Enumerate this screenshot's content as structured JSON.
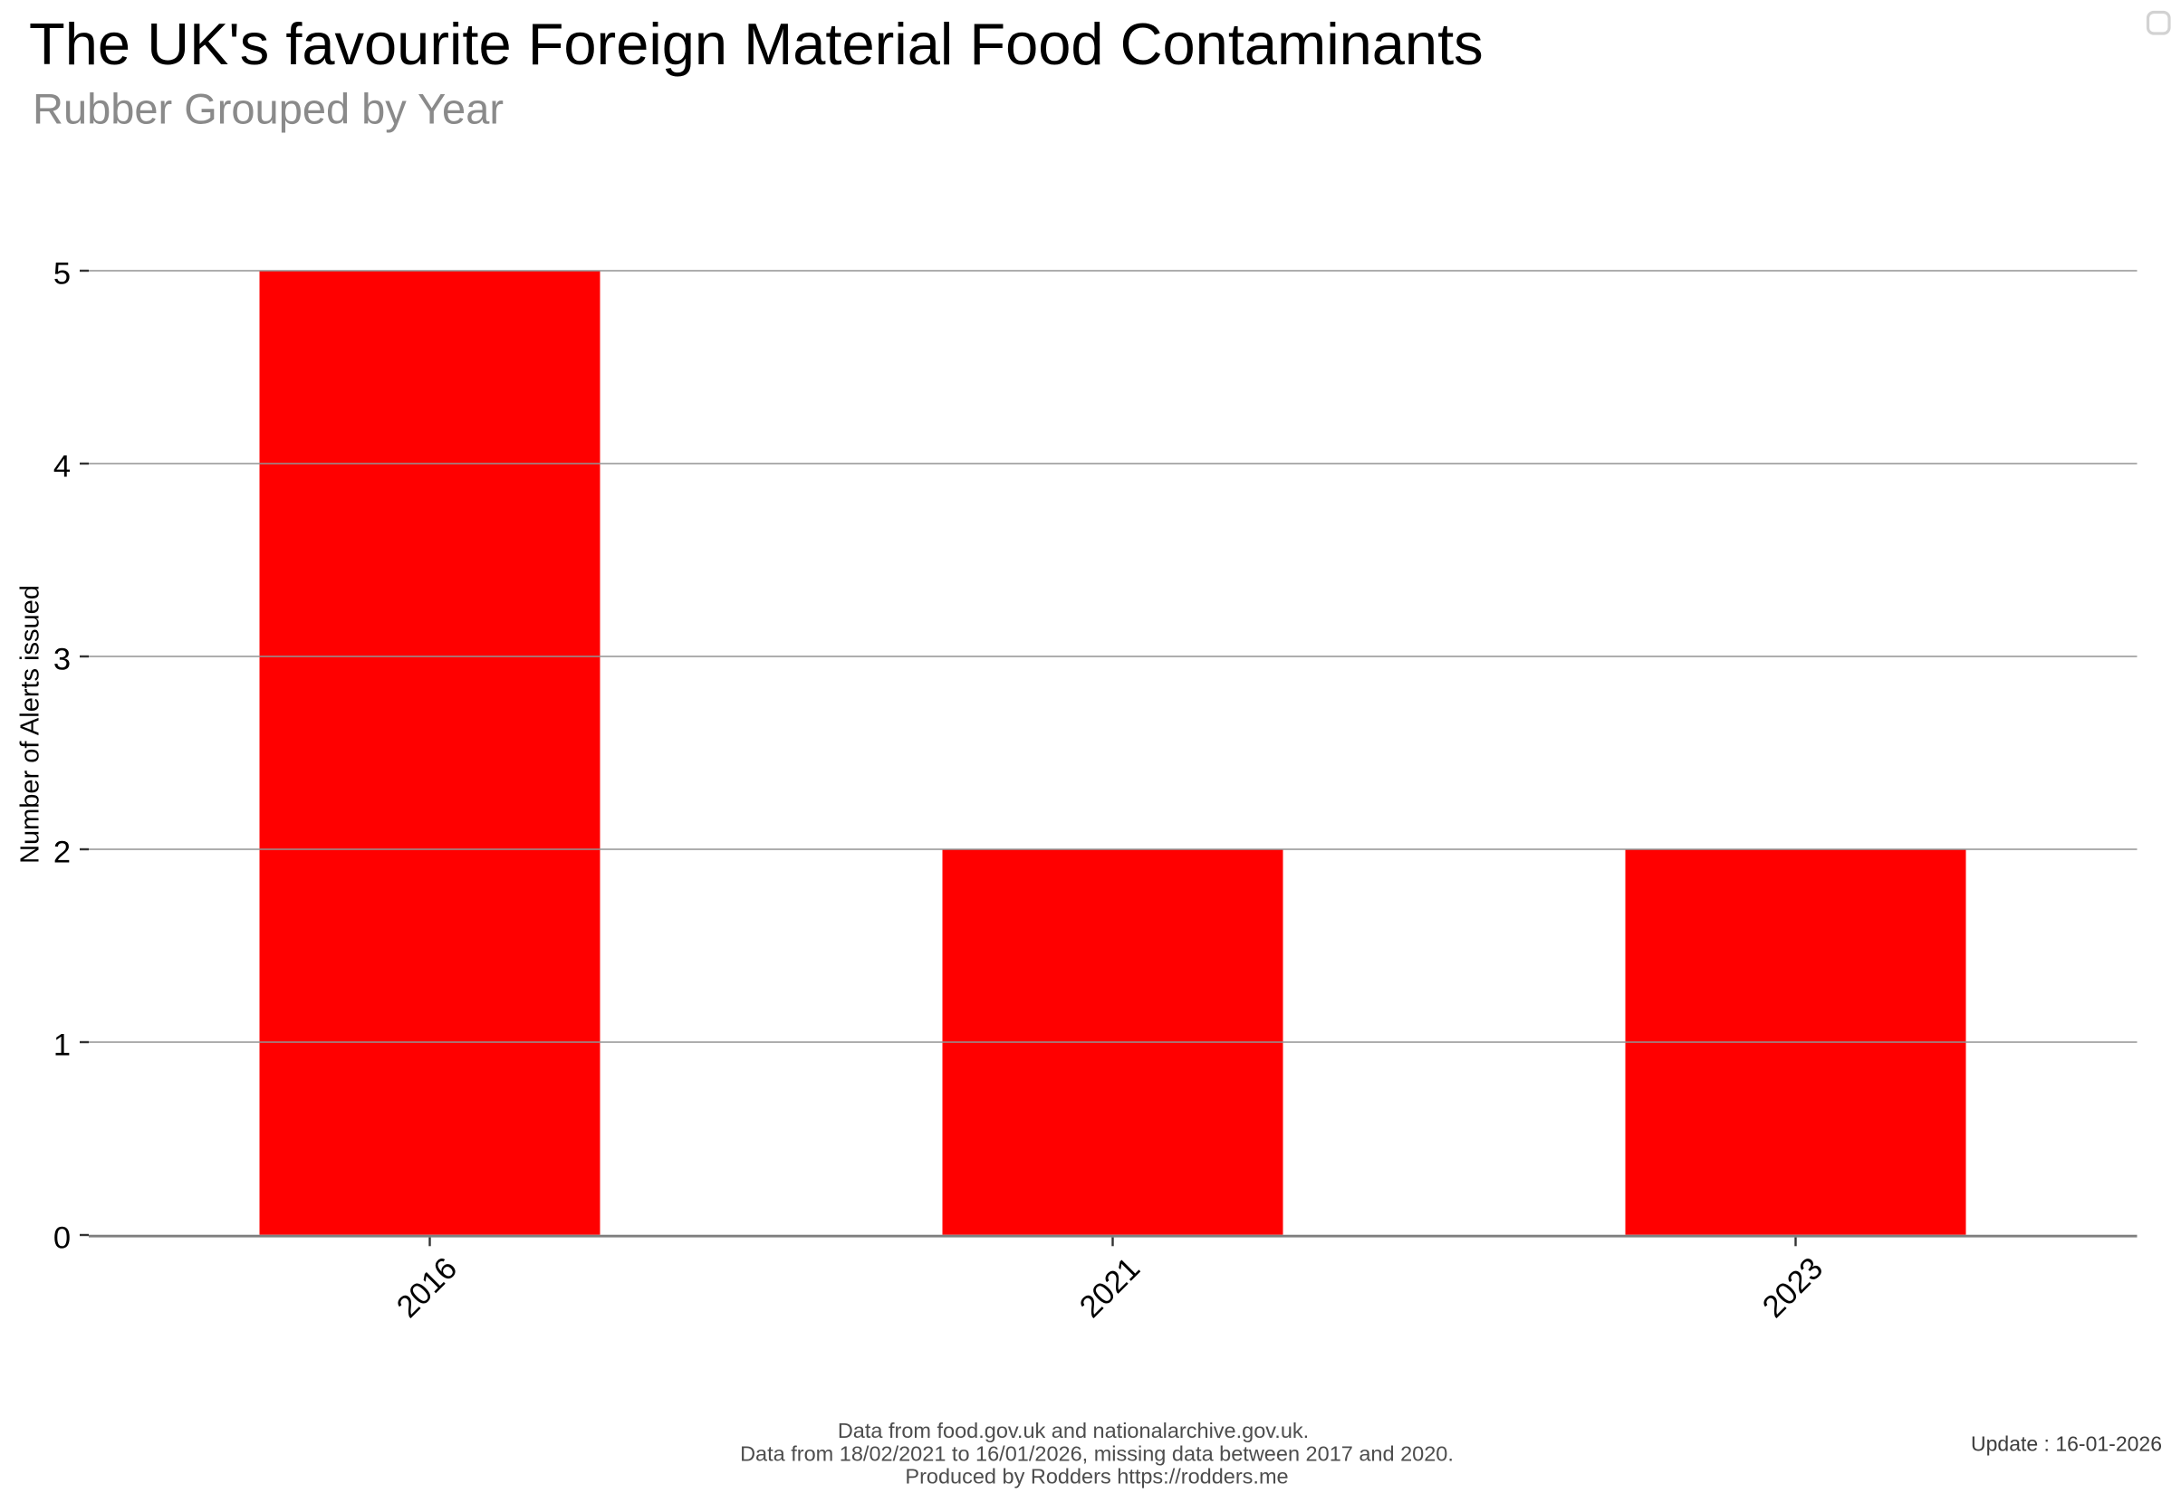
{
  "header": {
    "title": "The UK's favourite Foreign Material Food Contaminants",
    "subtitle": "Rubber Grouped by Year"
  },
  "chart_data": {
    "type": "bar",
    "categories": [
      "2016",
      "2021",
      "2023"
    ],
    "values": [
      5,
      2,
      2
    ],
    "title": "The UK's favourite Foreign Material Food Contaminants",
    "subtitle": "Rubber Grouped by Year",
    "xlabel": "",
    "ylabel": "Number of Alerts issued",
    "ylim": [
      0,
      5
    ],
    "yticks": [
      0,
      1,
      2,
      3,
      4,
      5
    ],
    "bar_color": "#ff0000",
    "grid": "on",
    "grid_color": "#949494",
    "axis_color": "#7f7f7f",
    "tick_color": "#333333",
    "legend": "none"
  },
  "footer": {
    "lines": [
      "Data from food.gov.uk and nationalarchive.gov.uk.",
      "Data from 18/02/2021 to 16/01/2026, missing data between 2017 and 2020.",
      "Produced by Rodders https://rodders.me"
    ],
    "update_label": "Update : 16-01-2026"
  }
}
